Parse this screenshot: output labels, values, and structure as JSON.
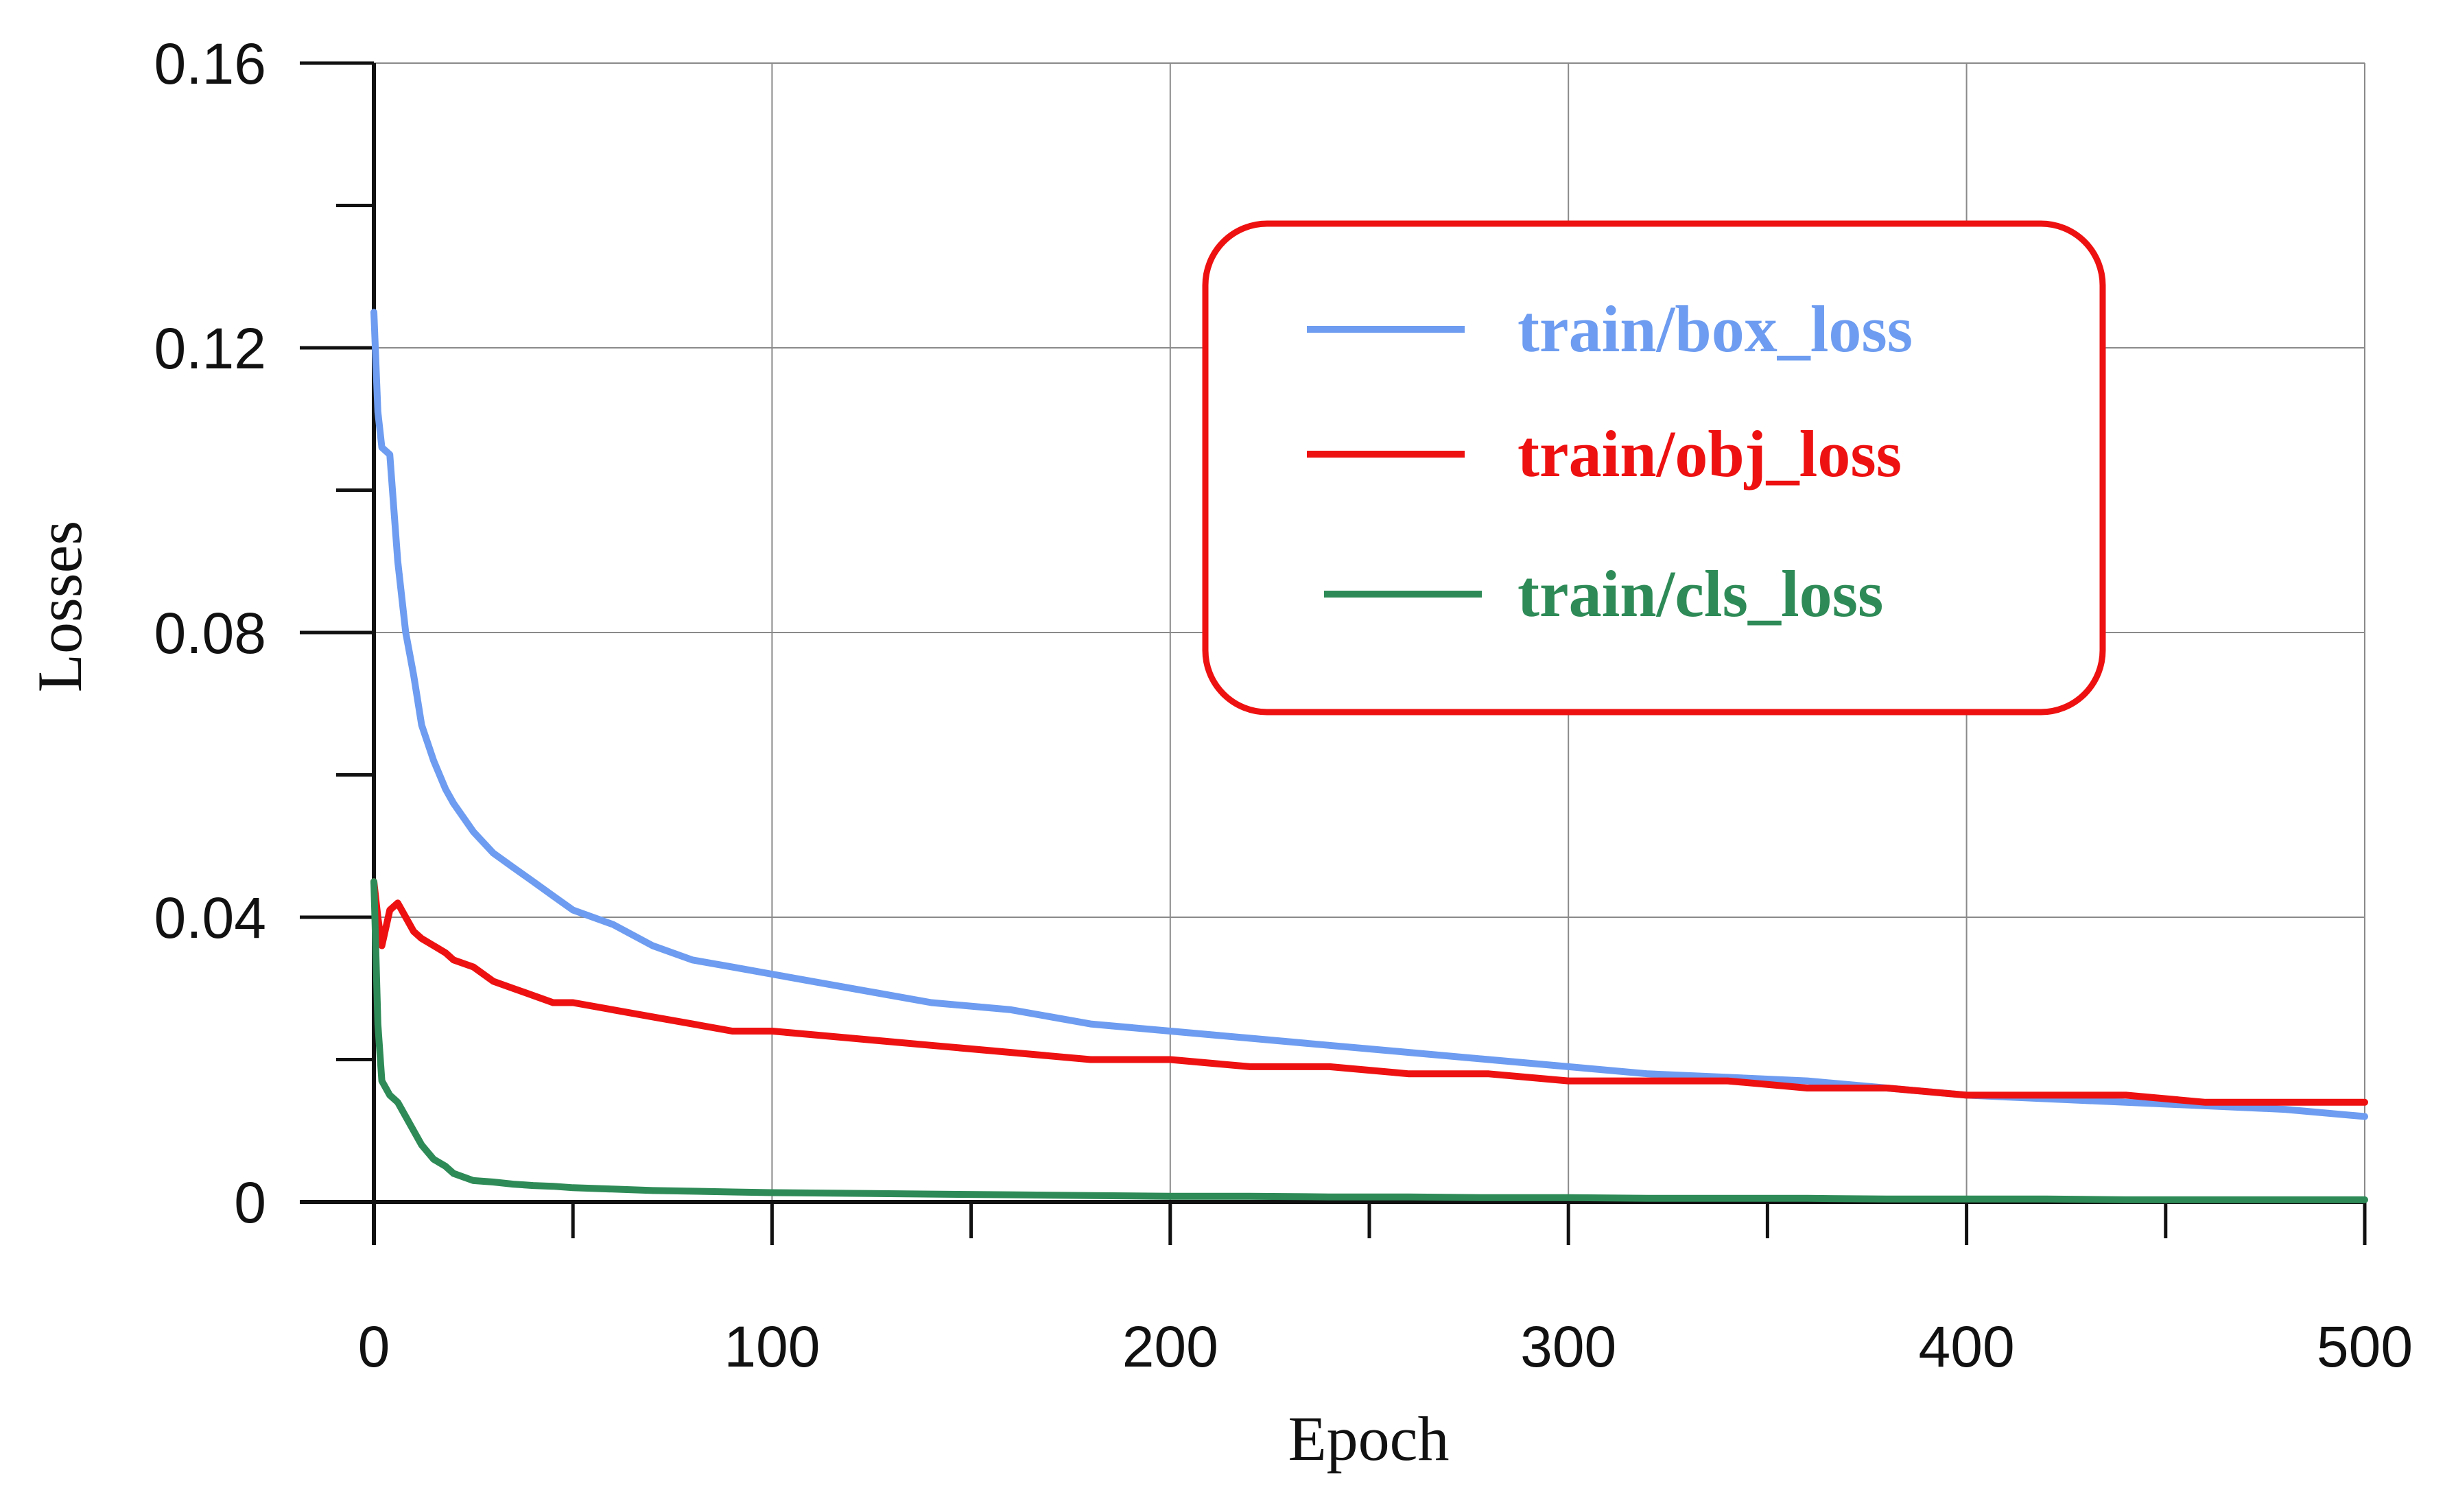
{
  "chart_data": {
    "type": "line",
    "title": "",
    "xlabel": "Epoch",
    "ylabel": "Losses",
    "xlim": [
      0,
      500
    ],
    "ylim": [
      0,
      0.16
    ],
    "grid": true,
    "legend_position": "top-right",
    "x_ticks": [
      0,
      100,
      200,
      300,
      400,
      500
    ],
    "x_tick_labels": [
      "0",
      "100",
      "200",
      "300",
      "400",
      "500"
    ],
    "y_ticks": [
      0,
      0.04,
      0.08,
      0.12,
      0.16
    ],
    "y_tick_labels": [
      "0",
      "0.04",
      "0.08",
      "0.12",
      "0.16"
    ],
    "x": [
      0,
      1,
      2,
      4,
      6,
      8,
      10,
      12,
      15,
      18,
      20,
      25,
      30,
      35,
      40,
      45,
      50,
      60,
      70,
      80,
      90,
      100,
      120,
      140,
      160,
      180,
      200,
      220,
      240,
      260,
      280,
      300,
      320,
      340,
      360,
      380,
      400,
      420,
      440,
      460,
      480,
      500
    ],
    "series": [
      {
        "name": "train/box_loss",
        "color": "#6d9cf0",
        "values": [
          0.125,
          0.111,
          0.106,
          0.105,
          0.09,
          0.08,
          0.074,
          0.067,
          0.062,
          0.058,
          0.056,
          0.052,
          0.049,
          0.047,
          0.045,
          0.043,
          0.041,
          0.039,
          0.036,
          0.034,
          0.033,
          0.032,
          0.03,
          0.028,
          0.027,
          0.025,
          0.024,
          0.023,
          0.022,
          0.021,
          0.02,
          0.019,
          0.018,
          0.0175,
          0.017,
          0.016,
          0.015,
          0.0145,
          0.014,
          0.0135,
          0.013,
          0.012
        ]
      },
      {
        "name": "train/obj_loss",
        "color": "#ee1111",
        "values": [
          0.045,
          0.04,
          0.036,
          0.041,
          0.042,
          0.04,
          0.038,
          0.037,
          0.036,
          0.035,
          0.034,
          0.033,
          0.031,
          0.03,
          0.029,
          0.028,
          0.028,
          0.027,
          0.026,
          0.025,
          0.024,
          0.024,
          0.023,
          0.022,
          0.021,
          0.02,
          0.02,
          0.019,
          0.019,
          0.018,
          0.018,
          0.017,
          0.017,
          0.017,
          0.016,
          0.016,
          0.015,
          0.015,
          0.015,
          0.014,
          0.014,
          0.014
        ]
      },
      {
        "name": "train/cls_loss",
        "color": "#2e8b57",
        "values": [
          0.045,
          0.025,
          0.017,
          0.015,
          0.014,
          0.012,
          0.01,
          0.008,
          0.006,
          0.005,
          0.004,
          0.003,
          0.0028,
          0.0025,
          0.0023,
          0.0022,
          0.002,
          0.0018,
          0.0016,
          0.0015,
          0.0014,
          0.0013,
          0.0012,
          0.0011,
          0.001,
          0.0009,
          0.0008,
          0.0008,
          0.0007,
          0.0007,
          0.0006,
          0.0006,
          0.0005,
          0.0005,
          0.0005,
          0.0004,
          0.0004,
          0.0004,
          0.0003,
          0.0003,
          0.0003,
          0.0003
        ]
      }
    ]
  }
}
